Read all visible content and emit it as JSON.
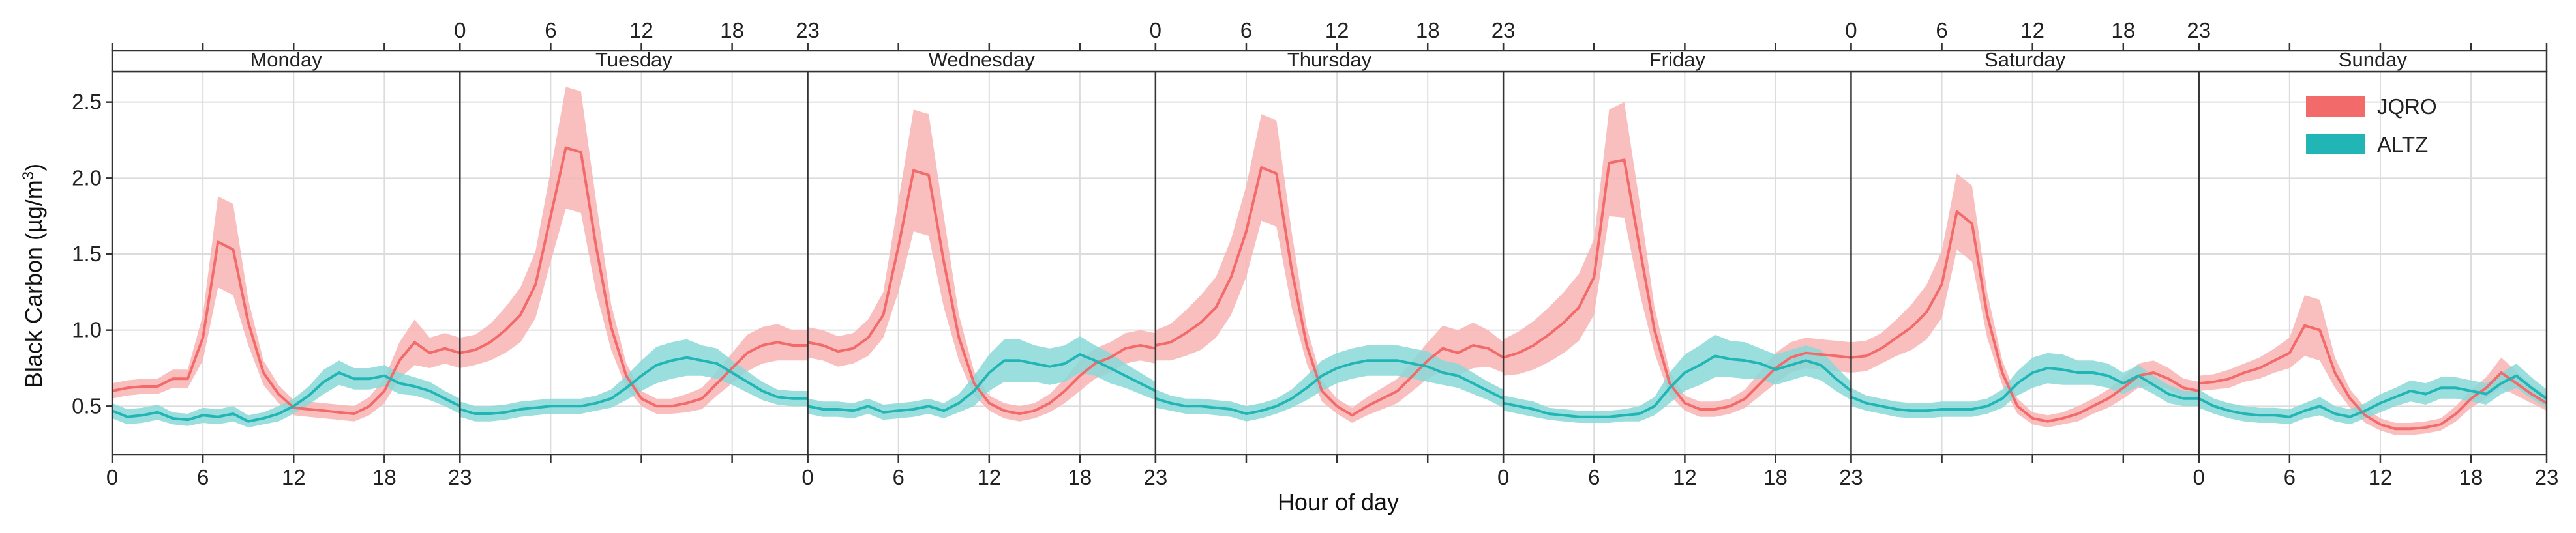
{
  "chart_data": {
    "type": "line",
    "title": "",
    "xlabel": "Hour of day",
    "ylabel_main": "Black Carbon (µg/m",
    "ylabel_sup": "3",
    "ylabel_tail": ")",
    "ylim": [
      0.18,
      2.7
    ],
    "yticks": [
      0.5,
      1.0,
      1.5,
      2.0,
      2.5
    ],
    "ytick_labels": [
      "0.5",
      "1.0",
      "1.5",
      "2.0",
      "2.5"
    ],
    "x_hours": [
      0,
      6,
      12,
      18,
      23
    ],
    "x_tick_labels": [
      "0",
      "6",
      "12",
      "18",
      "23"
    ],
    "grid": true,
    "legend_position": "top-right",
    "colors": {
      "JQRO": "#f26a6a",
      "JQRO_band": "#f8b4b4",
      "ALTZ": "#22b5b5",
      "ALTZ_band": "#8ad8d8"
    },
    "facets": [
      {
        "day": "Monday",
        "bottom_axis": true,
        "top_axis": false
      },
      {
        "day": "Tuesday",
        "bottom_axis": false,
        "top_axis": true
      },
      {
        "day": "Wednesday",
        "bottom_axis": true,
        "top_axis": false
      },
      {
        "day": "Thursday",
        "bottom_axis": false,
        "top_axis": true
      },
      {
        "day": "Friday",
        "bottom_axis": true,
        "top_axis": false
      },
      {
        "day": "Saturday",
        "bottom_axis": false,
        "top_axis": true
      },
      {
        "day": "Sunday",
        "bottom_axis": true,
        "top_axis": false
      }
    ],
    "series": [
      {
        "name": "JQRO",
        "mean": [
          [
            0.6,
            0.62,
            0.63,
            0.63,
            0.68,
            0.68,
            0.95,
            1.58,
            1.53,
            1.05,
            0.72,
            0.58,
            0.49,
            0.48,
            0.47,
            0.46,
            0.45,
            0.5,
            0.6,
            0.8,
            0.92,
            0.85,
            0.88,
            0.85
          ],
          [
            0.85,
            0.87,
            0.92,
            1.0,
            1.1,
            1.3,
            1.75,
            2.2,
            2.17,
            1.55,
            1.02,
            0.7,
            0.55,
            0.5,
            0.5,
            0.52,
            0.55,
            0.65,
            0.75,
            0.85,
            0.9,
            0.92,
            0.9,
            0.9
          ],
          [
            0.92,
            0.9,
            0.86,
            0.88,
            0.95,
            1.1,
            1.55,
            2.05,
            2.02,
            1.45,
            0.95,
            0.65,
            0.52,
            0.47,
            0.45,
            0.47,
            0.52,
            0.6,
            0.7,
            0.78,
            0.82,
            0.88,
            0.9,
            0.88
          ],
          [
            0.9,
            0.92,
            0.98,
            1.05,
            1.15,
            1.35,
            1.65,
            2.07,
            2.03,
            1.4,
            0.9,
            0.6,
            0.5,
            0.44,
            0.5,
            0.55,
            0.6,
            0.7,
            0.8,
            0.88,
            0.85,
            0.9,
            0.88,
            0.82
          ],
          [
            0.82,
            0.85,
            0.9,
            0.97,
            1.05,
            1.15,
            1.35,
            2.1,
            2.12,
            1.55,
            1.0,
            0.65,
            0.52,
            0.48,
            0.48,
            0.5,
            0.55,
            0.65,
            0.75,
            0.82,
            0.85,
            0.84,
            0.83,
            0.82
          ],
          [
            0.82,
            0.83,
            0.88,
            0.95,
            1.02,
            1.12,
            1.3,
            1.78,
            1.7,
            1.1,
            0.72,
            0.5,
            0.42,
            0.4,
            0.42,
            0.45,
            0.5,
            0.55,
            0.62,
            0.7,
            0.72,
            0.68,
            0.62,
            0.6
          ],
          [
            0.65,
            0.66,
            0.68,
            0.72,
            0.75,
            0.8,
            0.85,
            1.03,
            1.0,
            0.72,
            0.55,
            0.44,
            0.38,
            0.35,
            0.35,
            0.36,
            0.38,
            0.45,
            0.55,
            0.62,
            0.72,
            0.65,
            0.58,
            0.52
          ]
        ],
        "band_halfwidth": [
          [
            0.05,
            0.05,
            0.05,
            0.05,
            0.06,
            0.06,
            0.15,
            0.3,
            0.3,
            0.15,
            0.08,
            0.06,
            0.05,
            0.05,
            0.05,
            0.05,
            0.05,
            0.06,
            0.08,
            0.12,
            0.15,
            0.1,
            0.1,
            0.1
          ],
          [
            0.1,
            0.1,
            0.12,
            0.15,
            0.18,
            0.22,
            0.3,
            0.4,
            0.4,
            0.3,
            0.15,
            0.08,
            0.05,
            0.05,
            0.05,
            0.06,
            0.07,
            0.08,
            0.1,
            0.12,
            0.12,
            0.12,
            0.1,
            0.1
          ],
          [
            0.1,
            0.1,
            0.1,
            0.1,
            0.12,
            0.15,
            0.3,
            0.4,
            0.4,
            0.3,
            0.15,
            0.08,
            0.05,
            0.05,
            0.05,
            0.05,
            0.06,
            0.08,
            0.1,
            0.1,
            0.1,
            0.1,
            0.1,
            0.1
          ],
          [
            0.1,
            0.12,
            0.15,
            0.18,
            0.2,
            0.25,
            0.3,
            0.35,
            0.35,
            0.25,
            0.12,
            0.07,
            0.05,
            0.05,
            0.06,
            0.07,
            0.08,
            0.1,
            0.12,
            0.15,
            0.15,
            0.15,
            0.12,
            0.1
          ],
          [
            0.12,
            0.14,
            0.16,
            0.18,
            0.2,
            0.22,
            0.25,
            0.35,
            0.38,
            0.3,
            0.15,
            0.08,
            0.05,
            0.05,
            0.05,
            0.05,
            0.06,
            0.08,
            0.1,
            0.1,
            0.1,
            0.1,
            0.1,
            0.1
          ],
          [
            0.1,
            0.1,
            0.1,
            0.12,
            0.15,
            0.18,
            0.22,
            0.25,
            0.25,
            0.15,
            0.08,
            0.05,
            0.04,
            0.04,
            0.04,
            0.05,
            0.05,
            0.06,
            0.07,
            0.08,
            0.08,
            0.07,
            0.06,
            0.06
          ],
          [
            0.05,
            0.05,
            0.06,
            0.06,
            0.07,
            0.08,
            0.1,
            0.2,
            0.2,
            0.1,
            0.06,
            0.05,
            0.04,
            0.04,
            0.04,
            0.04,
            0.04,
            0.05,
            0.06,
            0.07,
            0.1,
            0.08,
            0.06,
            0.05
          ]
        ]
      },
      {
        "name": "ALTZ",
        "mean": [
          [
            0.47,
            0.43,
            0.44,
            0.46,
            0.42,
            0.41,
            0.44,
            0.43,
            0.45,
            0.4,
            0.42,
            0.45,
            0.5,
            0.57,
            0.66,
            0.72,
            0.68,
            0.68,
            0.7,
            0.65,
            0.63,
            0.6,
            0.55,
            0.5
          ],
          [
            0.48,
            0.45,
            0.45,
            0.46,
            0.48,
            0.49,
            0.5,
            0.5,
            0.5,
            0.52,
            0.55,
            0.62,
            0.7,
            0.77,
            0.8,
            0.82,
            0.8,
            0.78,
            0.72,
            0.66,
            0.6,
            0.56,
            0.55,
            0.55
          ],
          [
            0.5,
            0.48,
            0.48,
            0.47,
            0.5,
            0.46,
            0.47,
            0.48,
            0.5,
            0.47,
            0.52,
            0.6,
            0.72,
            0.8,
            0.8,
            0.78,
            0.76,
            0.78,
            0.84,
            0.8,
            0.75,
            0.7,
            0.65,
            0.6
          ],
          [
            0.55,
            0.52,
            0.5,
            0.5,
            0.49,
            0.48,
            0.45,
            0.47,
            0.5,
            0.55,
            0.62,
            0.7,
            0.75,
            0.78,
            0.8,
            0.8,
            0.8,
            0.78,
            0.76,
            0.72,
            0.7,
            0.65,
            0.6,
            0.55
          ],
          [
            0.52,
            0.5,
            0.48,
            0.45,
            0.44,
            0.43,
            0.43,
            0.43,
            0.44,
            0.45,
            0.5,
            0.62,
            0.72,
            0.77,
            0.83,
            0.81,
            0.8,
            0.78,
            0.74,
            0.77,
            0.8,
            0.77,
            0.68,
            0.6
          ],
          [
            0.56,
            0.52,
            0.5,
            0.48,
            0.47,
            0.47,
            0.48,
            0.48,
            0.48,
            0.5,
            0.55,
            0.65,
            0.72,
            0.75,
            0.74,
            0.72,
            0.72,
            0.7,
            0.65,
            0.7,
            0.64,
            0.58,
            0.55,
            0.55
          ],
          [
            0.55,
            0.5,
            0.47,
            0.45,
            0.44,
            0.44,
            0.43,
            0.47,
            0.5,
            0.45,
            0.43,
            0.47,
            0.52,
            0.56,
            0.6,
            0.58,
            0.62,
            0.62,
            0.6,
            0.58,
            0.65,
            0.7,
            0.62,
            0.55
          ]
        ],
        "band_halfwidth": [
          [
            0.05,
            0.05,
            0.05,
            0.05,
            0.04,
            0.04,
            0.05,
            0.05,
            0.05,
            0.04,
            0.04,
            0.05,
            0.05,
            0.06,
            0.08,
            0.08,
            0.07,
            0.07,
            0.07,
            0.07,
            0.06,
            0.06,
            0.05,
            0.05
          ],
          [
            0.05,
            0.05,
            0.05,
            0.05,
            0.05,
            0.05,
            0.05,
            0.05,
            0.05,
            0.05,
            0.06,
            0.08,
            0.1,
            0.12,
            0.12,
            0.12,
            0.1,
            0.1,
            0.08,
            0.07,
            0.06,
            0.05,
            0.05,
            0.05
          ],
          [
            0.05,
            0.05,
            0.05,
            0.05,
            0.05,
            0.05,
            0.05,
            0.05,
            0.05,
            0.05,
            0.06,
            0.1,
            0.12,
            0.14,
            0.14,
            0.12,
            0.12,
            0.12,
            0.12,
            0.1,
            0.1,
            0.08,
            0.07,
            0.06
          ],
          [
            0.06,
            0.05,
            0.05,
            0.05,
            0.05,
            0.05,
            0.05,
            0.05,
            0.05,
            0.06,
            0.08,
            0.1,
            0.1,
            0.1,
            0.1,
            0.1,
            0.1,
            0.1,
            0.1,
            0.08,
            0.08,
            0.07,
            0.06,
            0.06
          ],
          [
            0.05,
            0.05,
            0.05,
            0.04,
            0.04,
            0.04,
            0.04,
            0.04,
            0.04,
            0.05,
            0.06,
            0.1,
            0.12,
            0.13,
            0.14,
            0.12,
            0.12,
            0.1,
            0.1,
            0.1,
            0.1,
            0.1,
            0.08,
            0.06
          ],
          [
            0.06,
            0.05,
            0.05,
            0.05,
            0.05,
            0.05,
            0.05,
            0.05,
            0.05,
            0.05,
            0.06,
            0.08,
            0.1,
            0.1,
            0.1,
            0.08,
            0.08,
            0.08,
            0.07,
            0.07,
            0.06,
            0.06,
            0.05,
            0.05
          ],
          [
            0.06,
            0.05,
            0.05,
            0.05,
            0.05,
            0.05,
            0.05,
            0.05,
            0.06,
            0.05,
            0.05,
            0.05,
            0.06,
            0.06,
            0.07,
            0.07,
            0.07,
            0.07,
            0.07,
            0.07,
            0.07,
            0.08,
            0.07,
            0.06
          ]
        ]
      }
    ]
  }
}
